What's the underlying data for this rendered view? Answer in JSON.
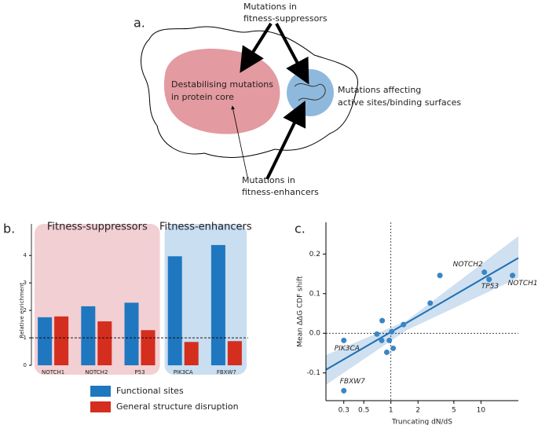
{
  "diagram": {
    "label": "a.",
    "suppressors": [
      "Mutations in",
      "fitness-suppressors"
    ],
    "core": [
      "Destabilising mutations",
      "in protein core"
    ],
    "surface": [
      "Mutations affecting",
      "active sites/binding surfaces"
    ],
    "enhancers": [
      "Mutations in",
      "fitness-enhancers"
    ]
  },
  "chart_data": [
    {
      "type": "bar",
      "panel": "b.",
      "ylabel": "Relative enrichment",
      "categories": [
        "NOTCH1",
        "NOTCH2",
        "P53",
        "PIK3CA",
        "FBXW7"
      ],
      "groups": [
        {
          "name": "Fitness-suppressors",
          "categories": [
            "NOTCH1",
            "NOTCH2",
            "P53"
          ],
          "color": "#f2cfd3"
        },
        {
          "name": "Fitness-enhancers",
          "categories": [
            "PIK3CA",
            "FBXW7"
          ],
          "color": "#c9def0"
        }
      ],
      "series": [
        {
          "name": "Functional sites",
          "color": "#1f77c0",
          "values": [
            1.75,
            2.15,
            2.28,
            3.97,
            4.38
          ]
        },
        {
          "name": "General structure disruption",
          "color": "#d42e1e",
          "values": [
            1.78,
            1.6,
            1.28,
            0.85,
            0.88
          ]
        }
      ],
      "ylim": [
        0,
        5.15
      ],
      "yticks": [
        0,
        1,
        2,
        3,
        4
      ],
      "ref_y": 1
    },
    {
      "type": "scatter",
      "panel": "c.",
      "xlabel": "Truncating dN/dS",
      "ylabel": "Mean ΔΔG CDF shift",
      "x": [
        0.3,
        0.3,
        0.7,
        0.8,
        0.79,
        0.9,
        0.96,
        1.02,
        1.06,
        1.38,
        2.73,
        3.5,
        10.9,
        12.3,
        22.4
      ],
      "values": [
        -0.018,
        -0.145,
        -0.002,
        0.032,
        -0.018,
        -0.048,
        -0.018,
        0.004,
        -0.038,
        0.022,
        0.076,
        0.146,
        0.154,
        0.136,
        0.146
      ],
      "point_labels": [
        "PIK3CA",
        "FBXW7",
        null,
        null,
        null,
        null,
        null,
        null,
        null,
        null,
        null,
        null,
        "NOTCH2",
        "TP53",
        "NOTCH1"
      ],
      "color": "#3a86c4",
      "log_x": true,
      "xlim": [
        0.19,
        26
      ],
      "ylim": [
        -0.17,
        0.28
      ],
      "xticks": [
        0.3,
        0.5,
        1,
        2,
        5,
        10
      ],
      "yticks": [
        0.2,
        0.1,
        {
          "value": 0,
          "label": "0.0"
        },
        -0.1
      ],
      "fit": {
        "x": [
          0.19,
          26
        ],
        "y": [
          -0.092,
          0.19
        ]
      },
      "fit_band": {
        "x": [
          0.19,
          1.5,
          26
        ],
        "lower": [
          -0.13,
          0.008,
          0.14
        ],
        "upper": [
          -0.055,
          0.032,
          0.245
        ]
      },
      "ref_x": 1,
      "ref_y": 0
    }
  ]
}
